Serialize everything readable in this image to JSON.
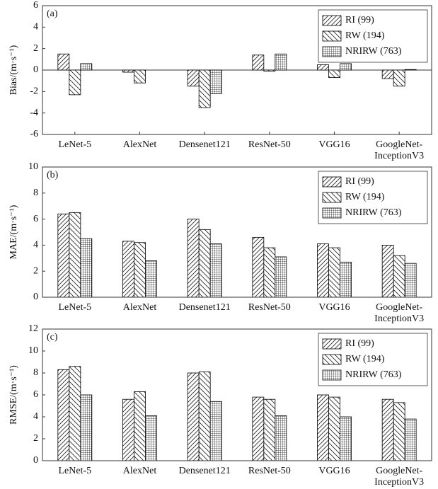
{
  "chart_data": [
    {
      "type": "bar",
      "panel": "(a)",
      "y_label": "Bias/(m·s⁻¹)",
      "categories": [
        "LeNet-5",
        "AlexNet",
        "Densenet121",
        "ResNet-50",
        "VGG16",
        "GoogleNet-InceptionV3"
      ],
      "series": [
        {
          "name": "RI (99)",
          "color": "#000000",
          "hatch": "forward",
          "values": [
            1.5,
            -0.2,
            -1.5,
            1.4,
            0.5,
            -0.8
          ]
        },
        {
          "name": "RW (194)",
          "color": "#000000",
          "hatch": "backward",
          "values": [
            -2.3,
            -1.2,
            -3.5,
            -0.1,
            -0.7,
            -1.5
          ]
        },
        {
          "name": "NRIRW (763)",
          "color": "#000000",
          "hatch": "grid",
          "values": [
            0.6,
            0,
            -2.2,
            1.5,
            0.6,
            0.05
          ]
        }
      ],
      "ylim": [
        -6,
        6
      ],
      "yticks": [
        -6,
        -4,
        -2,
        0,
        2,
        4,
        6
      ],
      "legend": "upper right"
    },
    {
      "type": "bar",
      "panel": "(b)",
      "y_label": "MAE/(m·s⁻¹)",
      "categories": [
        "LeNet-5",
        "AlexNet",
        "Densenet121",
        "ResNet-50",
        "VGG16",
        "GoogleNet-InceptionV3"
      ],
      "series": [
        {
          "name": "RI (99)",
          "color": "#000000",
          "hatch": "forward",
          "values": [
            6.4,
            4.3,
            6.0,
            4.6,
            4.1,
            4.0
          ]
        },
        {
          "name": "RW (194)",
          "color": "#000000",
          "hatch": "backward",
          "values": [
            6.5,
            4.2,
            5.2,
            3.8,
            3.8,
            3.2
          ]
        },
        {
          "name": "NRIRW (763)",
          "color": "#000000",
          "hatch": "grid",
          "values": [
            4.5,
            2.8,
            4.1,
            3.1,
            2.7,
            2.6
          ]
        }
      ],
      "ylim": [
        0,
        10
      ],
      "yticks": [
        0,
        2,
        4,
        6,
        8,
        10
      ],
      "legend": "upper right"
    },
    {
      "type": "bar",
      "panel": "(c)",
      "y_label": "RMSE/(m·s⁻¹)",
      "categories": [
        "LeNet-5",
        "AlexNet",
        "Densenet121",
        "ResNet-50",
        "VGG16",
        "GoogleNet-InceptionV3"
      ],
      "series": [
        {
          "name": "RI (99)",
          "color": "#000000",
          "hatch": "forward",
          "values": [
            8.3,
            5.6,
            8.0,
            5.8,
            6.0,
            5.6
          ]
        },
        {
          "name": "RW (194)",
          "color": "#000000",
          "hatch": "backward",
          "values": [
            8.6,
            6.3,
            8.1,
            5.6,
            5.8,
            5.3
          ]
        },
        {
          "name": "NRIRW (763)",
          "color": "#000000",
          "hatch": "grid",
          "values": [
            6.0,
            4.1,
            5.4,
            4.1,
            4.0,
            3.8
          ]
        }
      ],
      "ylim": [
        0,
        12
      ],
      "yticks": [
        0,
        2,
        4,
        6,
        8,
        10,
        12
      ],
      "legend": "upper right"
    }
  ]
}
